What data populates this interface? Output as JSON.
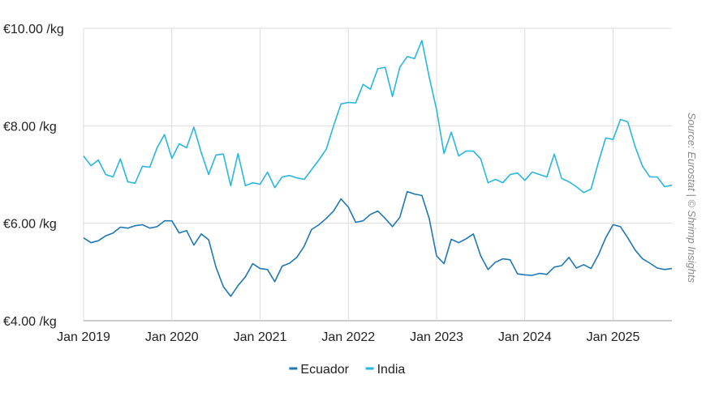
{
  "chart_data": {
    "type": "line",
    "title": "",
    "xlabel": "",
    "ylabel": "",
    "ylim": [
      4,
      10
    ],
    "x_start": "Jan 2019",
    "y_ticks": [
      "€4.00 /kg",
      "€6.00 /kg",
      "€8.00 /kg",
      "€10.00 /kg"
    ],
    "y_tick_values": [
      4,
      6,
      8,
      10
    ],
    "x_ticks": [
      "Jan 2019",
      "Jan 2020",
      "Jan 2021",
      "Jan 2022",
      "Jan 2023",
      "Jan 2024",
      "Jan 2025"
    ],
    "grid": true,
    "legend_position": "bottom-center",
    "source": "Source: Eurostat | © Shrimp Insights",
    "series": [
      {
        "name": "Ecuador",
        "color": "#1f77b4",
        "values": [
          5.7,
          5.6,
          5.64,
          5.74,
          5.8,
          5.92,
          5.9,
          5.95,
          5.97,
          5.9,
          5.93,
          6.05,
          6.05,
          5.8,
          5.85,
          5.55,
          5.78,
          5.66,
          5.1,
          4.7,
          4.5,
          4.72,
          4.9,
          5.17,
          5.07,
          5.05,
          4.8,
          5.12,
          5.18,
          5.3,
          5.53,
          5.87,
          5.97,
          6.1,
          6.25,
          6.5,
          6.33,
          6.02,
          6.05,
          6.18,
          6.25,
          6.1,
          5.93,
          6.12,
          6.65,
          6.6,
          6.57,
          6.1,
          5.33,
          5.17,
          5.67,
          5.6,
          5.68,
          5.78,
          5.33,
          5.05,
          5.2,
          5.27,
          5.25,
          4.96,
          4.94,
          4.93,
          4.97,
          4.95,
          5.1,
          5.13,
          5.3,
          5.08,
          5.15,
          5.07,
          5.35,
          5.7,
          5.97,
          5.93,
          5.7,
          5.45,
          5.27,
          5.18,
          5.08,
          5.05,
          5.07
        ]
      },
      {
        "name": "India",
        "color": "#29b6e0",
        "values": [
          7.38,
          7.18,
          7.3,
          7.0,
          6.95,
          7.32,
          6.85,
          6.82,
          7.17,
          7.15,
          7.55,
          7.82,
          7.33,
          7.63,
          7.55,
          7.97,
          7.45,
          7.0,
          7.4,
          7.42,
          6.77,
          7.43,
          6.77,
          6.83,
          6.8,
          7.05,
          6.73,
          6.95,
          6.98,
          6.93,
          6.9,
          7.1,
          7.3,
          7.52,
          8.0,
          8.45,
          8.48,
          8.47,
          8.85,
          8.75,
          9.17,
          9.2,
          8.6,
          9.2,
          9.42,
          9.38,
          9.75,
          9.0,
          8.33,
          7.43,
          7.87,
          7.38,
          7.48,
          7.48,
          7.32,
          6.83,
          6.9,
          6.83,
          7.0,
          7.03,
          6.88,
          7.05,
          7.0,
          6.95,
          7.42,
          6.92,
          6.85,
          6.75,
          6.63,
          6.7,
          7.25,
          7.75,
          7.72,
          8.13,
          8.08,
          7.57,
          7.17,
          6.95,
          6.95,
          6.75,
          6.78
        ]
      }
    ]
  }
}
